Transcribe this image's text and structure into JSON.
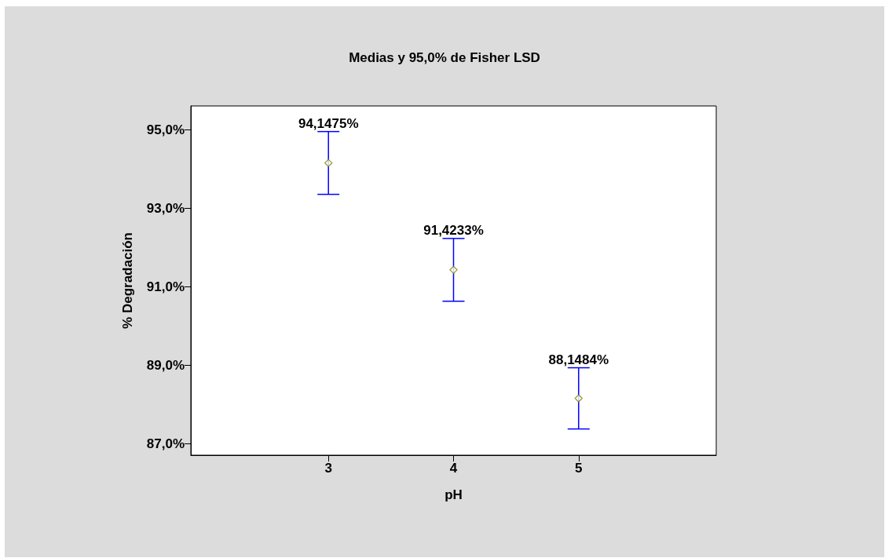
{
  "chart_data": {
    "type": "scatter",
    "title": "Medias y 95,0% de Fisher LSD",
    "xlabel": "pH",
    "ylabel": "% Degradación",
    "x": [
      3,
      4,
      5
    ],
    "series": [
      {
        "color": "#808000",
        "values": [
          94.1475,
          91.4233,
          88.1484
        ],
        "errors": [
          0.8,
          0.8,
          0.78
        ],
        "value_labels": [
          "94,1475%",
          "91,4233%",
          "88,1484%"
        ]
      }
    ],
    "xlim": [
      1.9,
      6.1
    ],
    "xticks": [
      3,
      4,
      5
    ],
    "ylim": [
      86.7,
      95.6
    ],
    "yticks": [
      {
        "value": 87,
        "label": "87,0%"
      },
      {
        "value": 89,
        "label": "89,0%"
      },
      {
        "value": 91,
        "label": "91,0%"
      },
      {
        "value": 93,
        "label": "93,0%"
      },
      {
        "value": 95,
        "label": "95,0%"
      }
    ],
    "marker": "diamond",
    "grid": false
  }
}
